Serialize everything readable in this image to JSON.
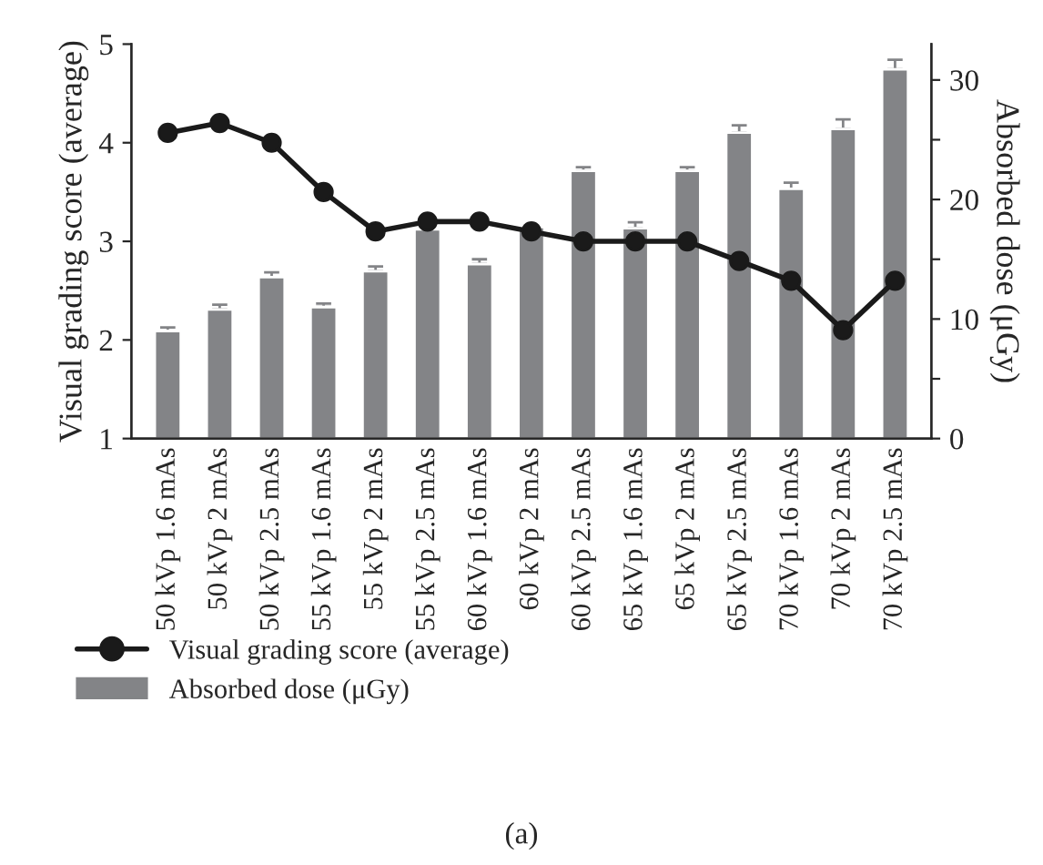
{
  "chart_data": {
    "type": "bar",
    "categories": [
      "50 kVp 1.6 mAs",
      "50 kVp 2 mAs",
      "50 kVp 2.5 mAs",
      "55 kVp 1.6 mAs",
      "55 kVp 2 mAs",
      "55 kVp 2.5 mAs",
      "60 kVp 1.6 mAs",
      "60 kVp 2 mAs",
      "60 kVp 2.5 mAs",
      "65 kVp 1.6 mAs",
      "65 kVp 2 mAs",
      "65 kVp 2.5 mAs",
      "70 kVp 1.6 mAs",
      "70 kVp 2 mAs",
      "70 kVp 2.5 mAs"
    ],
    "series": [
      {
        "name": "Visual grading score (average)",
        "type": "line",
        "axis": "y",
        "color": "#1a1a1a",
        "marker": "circle",
        "line_style": "solid",
        "values": [
          4.1,
          4.2,
          4.0,
          3.5,
          3.1,
          3.2,
          3.2,
          3.1,
          3.0,
          3.0,
          3.0,
          2.8,
          2.6,
          2.1,
          2.6
        ]
      },
      {
        "name": "Absorbed dose (μGy)",
        "axis": "y2",
        "color": "#838487",
        "values": [
          9.0,
          10.8,
          13.5,
          11.0,
          14.0,
          17.5,
          14.6,
          17.7,
          22.4,
          17.6,
          22.4,
          25.6,
          20.9,
          25.9,
          30.9
        ],
        "errors": [
          [
            9.0,
            9.3
          ],
          [
            10.8,
            11.2
          ],
          [
            13.5,
            13.9
          ],
          [
            11.0,
            11.3
          ],
          [
            14.0,
            14.4
          ],
          [
            17.5,
            17.8
          ],
          [
            14.6,
            15.0
          ],
          [
            17.7,
            17.8
          ],
          [
            22.4,
            22.7
          ],
          [
            17.6,
            18.1
          ],
          [
            22.4,
            22.7
          ],
          [
            25.6,
            26.2
          ],
          [
            20.9,
            21.4
          ],
          [
            25.9,
            26.7
          ],
          [
            30.9,
            31.7
          ]
        ]
      }
    ],
    "ylabel": "Visual grading score (average)",
    "y2label": "Absorbed dose (μGy)",
    "ylim": [
      1,
      5
    ],
    "yticks": [
      1,
      2,
      3,
      4,
      5
    ],
    "y2lim": [
      0,
      33
    ],
    "y2ticks": [
      0,
      {
        "value": 5,
        "label": null
      },
      10,
      {
        "value": 15,
        "label": null
      },
      20,
      {
        "value": 25,
        "label": null
      },
      30
    ],
    "grid": false,
    "legend": "bottom",
    "annotations": [
      "(a)"
    ]
  }
}
